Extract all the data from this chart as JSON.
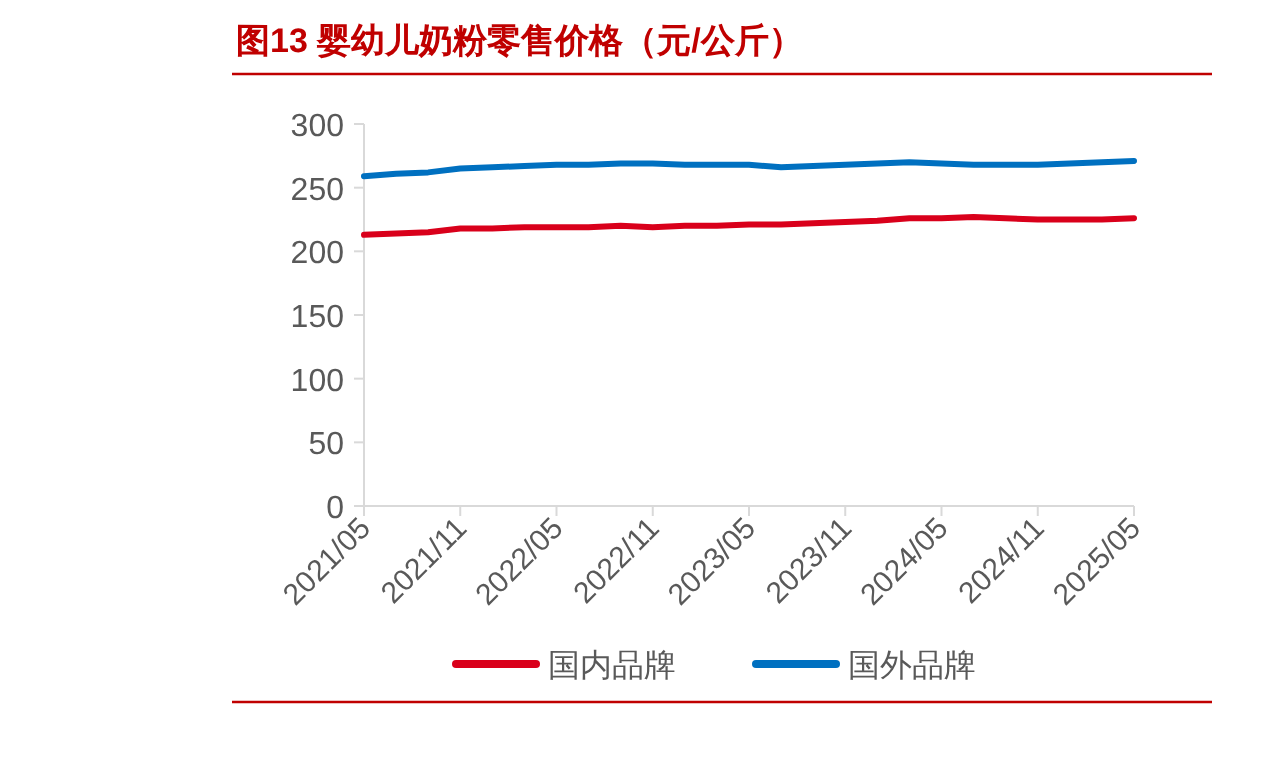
{
  "chart_data": {
    "type": "line",
    "title": "图13  婴幼儿奶粉零售价格（元/公斤）",
    "x": [
      "2021-05",
      "2021-07",
      "2021-09",
      "2021-11",
      "2022-01",
      "2022-03",
      "2022-05",
      "2022-07",
      "2022-09",
      "2022-11",
      "2023-01",
      "2023-03",
      "2023-05",
      "2023-07",
      "2023-09",
      "2023-11",
      "2024-01",
      "2024-03",
      "2024-05",
      "2024-07",
      "2024-09",
      "2024-11",
      "2025-01",
      "2025-03",
      "2025-05"
    ],
    "series": [
      {
        "name": "国内品牌",
        "color": "#d9001b",
        "values": [
          213,
          214,
          215,
          218,
          218,
          219,
          219,
          219,
          220,
          219,
          220,
          220,
          221,
          221,
          222,
          223,
          224,
          226,
          226,
          227,
          226,
          225,
          225,
          225,
          226
        ]
      },
      {
        "name": "国外品牌",
        "color": "#0070c0",
        "values": [
          259,
          261,
          262,
          265,
          266,
          267,
          268,
          268,
          269,
          269,
          268,
          268,
          268,
          266,
          267,
          268,
          269,
          270,
          269,
          268,
          268,
          268,
          269,
          270,
          271
        ]
      }
    ],
    "ylim": [
      0,
      300
    ],
    "yticks": [
      0,
      50,
      100,
      150,
      200,
      250,
      300
    ],
    "xlim": [
      "2021-05",
      "2025-05"
    ],
    "xticks": [
      {
        "value": "2021-05",
        "label": "2021/05"
      },
      {
        "value": "2021-11",
        "label": "2021/11"
      },
      {
        "value": "2022-05",
        "label": "2022/05"
      },
      {
        "value": "2022-11",
        "label": "2022/11"
      },
      {
        "value": "2023-05",
        "label": "2023/05"
      },
      {
        "value": "2023-11",
        "label": "2023/11"
      },
      {
        "value": "2024-05",
        "label": "2024/05"
      },
      {
        "value": "2024-11",
        "label": "2024/11"
      },
      {
        "value": "2025-05",
        "label": "2025/05"
      }
    ],
    "legend": "bottom",
    "grid": false
  }
}
